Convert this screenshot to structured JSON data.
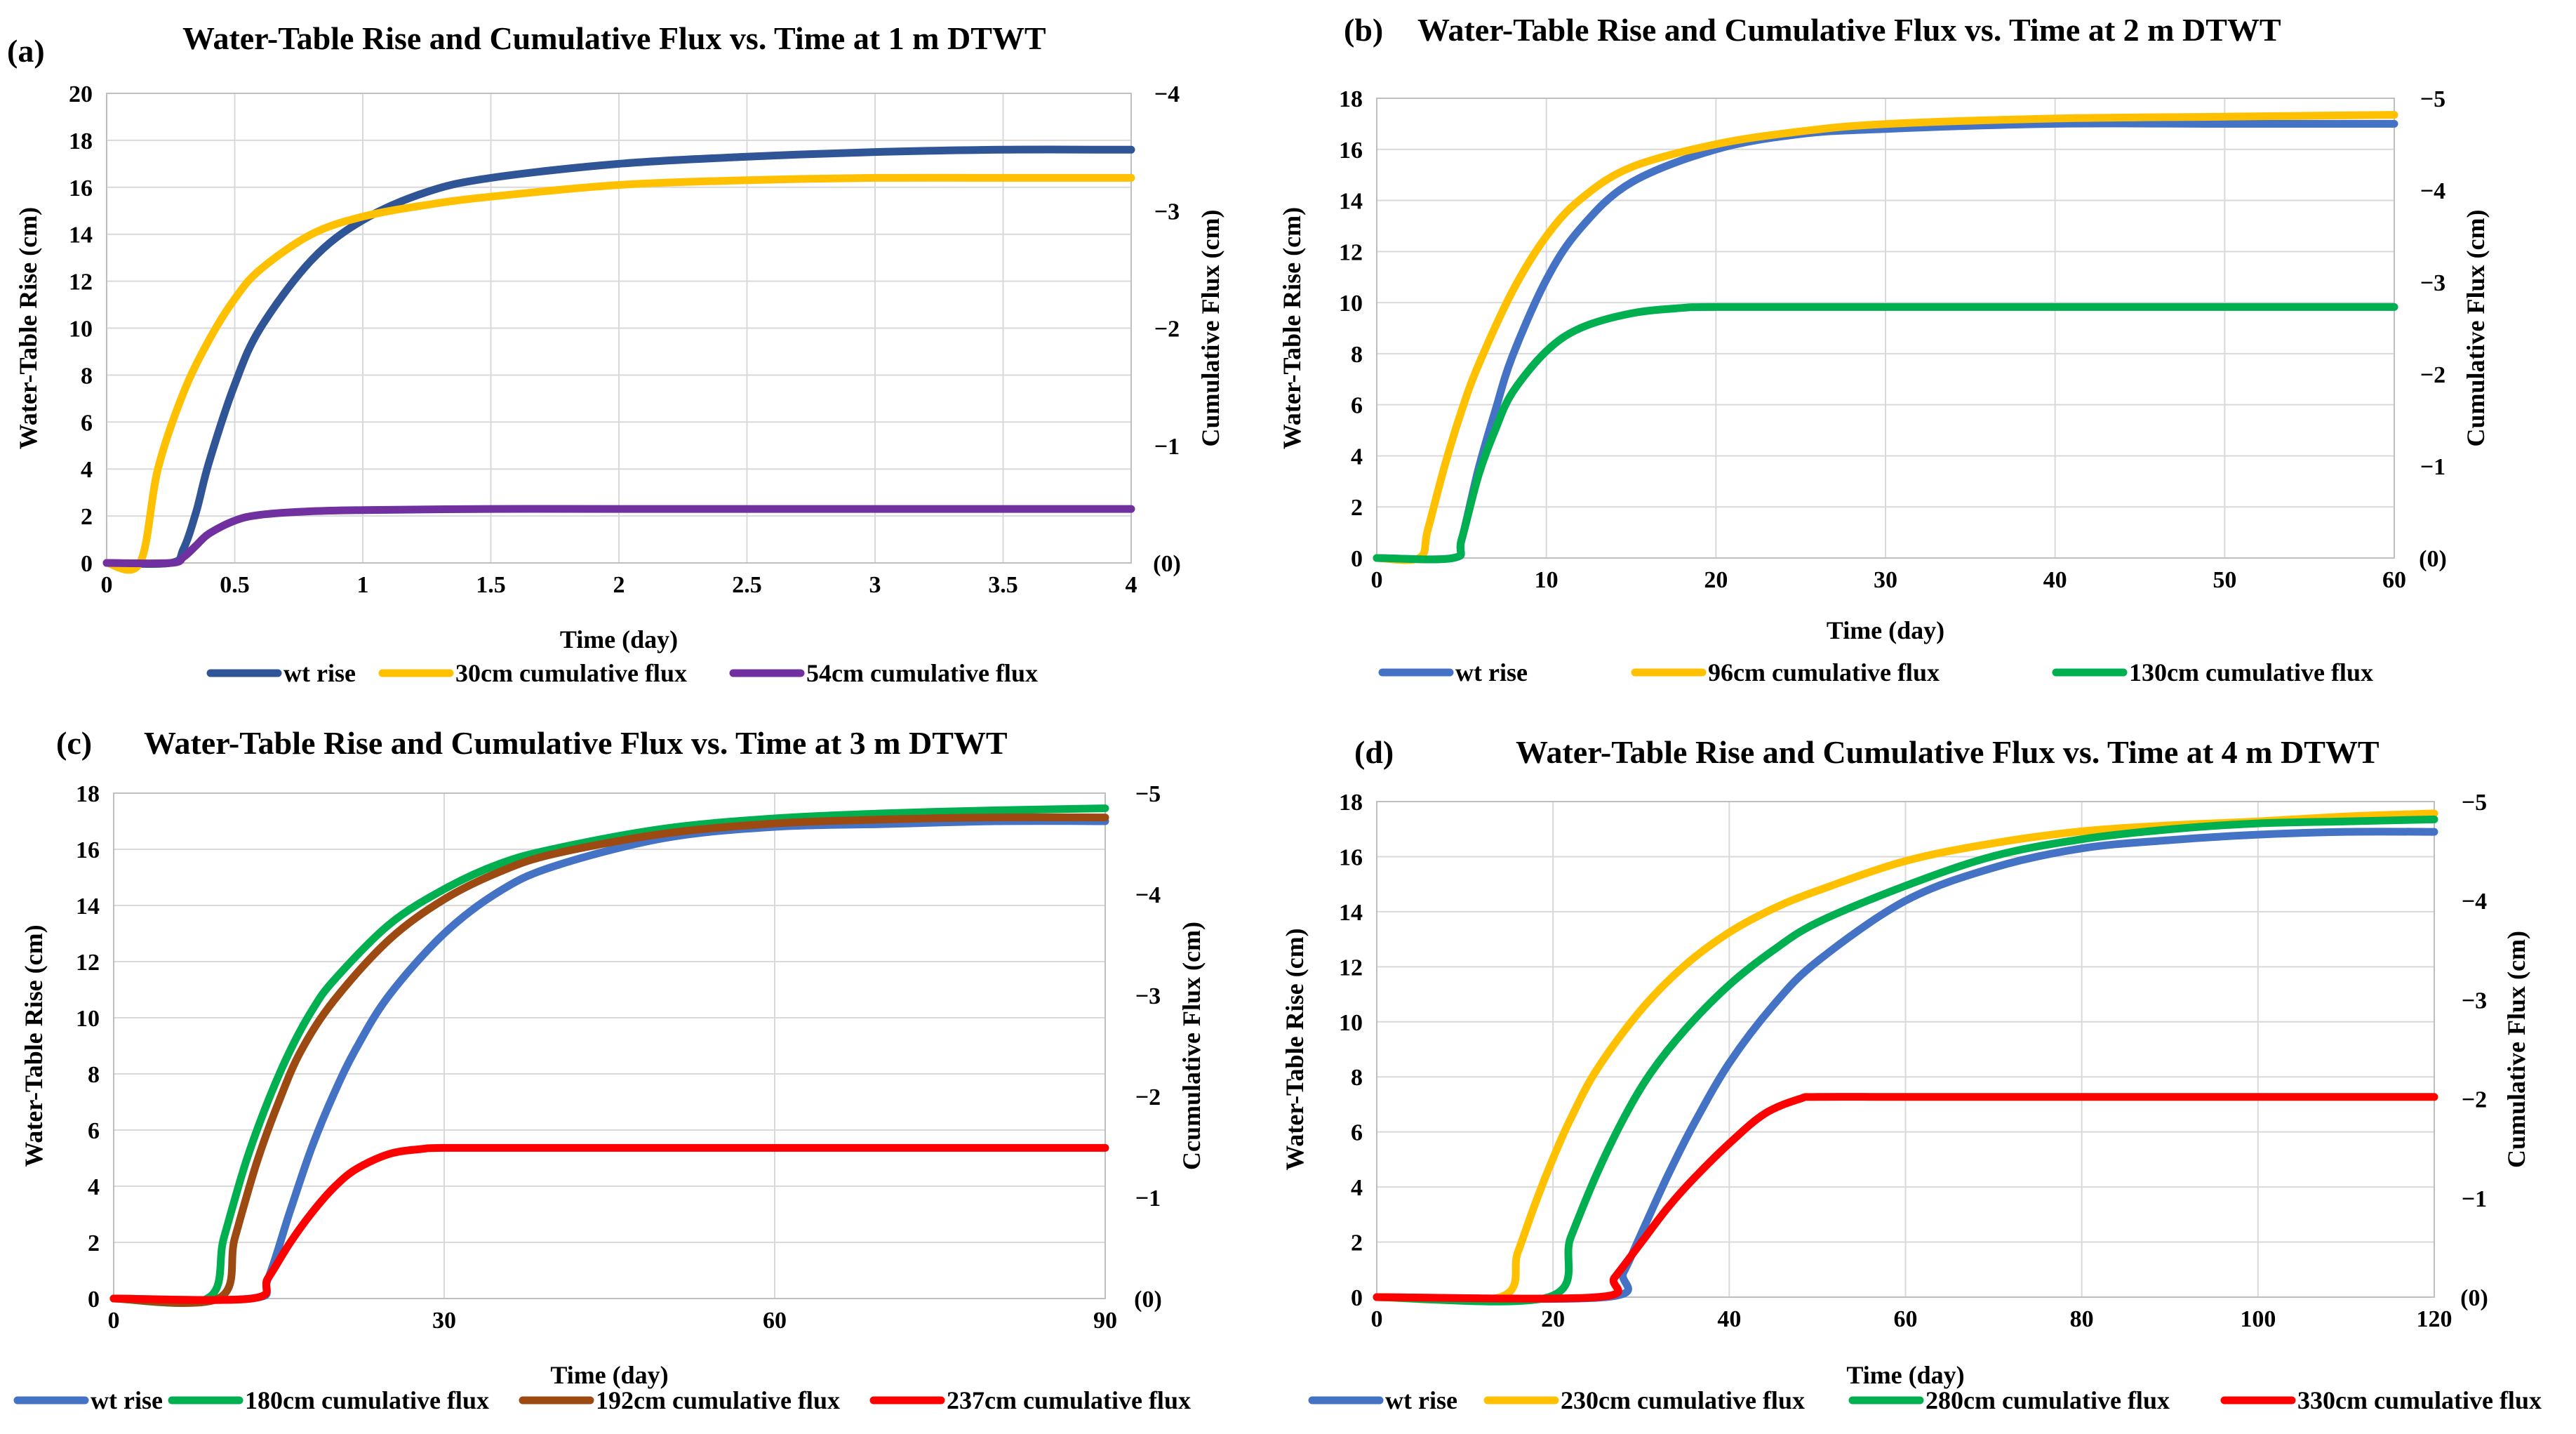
{
  "chart_data": [
    {
      "panel": "(a)",
      "type": "line",
      "title": "Water-Table Rise and Cumulative Flux vs. Time at 1 m DTWT",
      "xlabel": "Time (day)",
      "ylabel": "Water-Table Rise (cm)",
      "y2label": "Cumulative Flux (cm)",
      "xlim": [
        0,
        4
      ],
      "ylim": [
        0,
        20
      ],
      "y2lim": [
        0,
        -4
      ],
      "xticks": [
        "0",
        "0.5",
        "1",
        "1.5",
        "2",
        "2.5",
        "3",
        "3.5",
        "4"
      ],
      "yticks": [
        "0",
        "2",
        "4",
        "6",
        "8",
        "10",
        "12",
        "14",
        "16",
        "18",
        "20"
      ],
      "y2ticks": [
        "(0)",
        "−1",
        "−2",
        "−3",
        "−4"
      ],
      "series": [
        {
          "name": "wt rise",
          "color": "#2f5597",
          "axis": "left",
          "x": [
            0,
            0.25,
            0.3,
            0.35,
            0.4,
            0.5,
            0.6,
            0.8,
            1.0,
            1.25,
            1.5,
            2.0,
            2.5,
            3.0,
            3.5,
            4.0
          ],
          "y": [
            0,
            0,
            0.6,
            2.2,
            4.3,
            7.6,
            10.0,
            12.9,
            14.6,
            15.8,
            16.4,
            17.0,
            17.3,
            17.5,
            17.6,
            17.6
          ]
        },
        {
          "name": "30cm cumulative flux",
          "color": "#ffc000",
          "axis": "right",
          "x": [
            0,
            0.13,
            0.2,
            0.3,
            0.4,
            0.5,
            0.6,
            0.8,
            1.0,
            1.25,
            1.5,
            2.0,
            2.5,
            3.0,
            3.5,
            4.0
          ],
          "y": [
            0,
            0,
            -0.8,
            -1.45,
            -1.9,
            -2.25,
            -2.5,
            -2.8,
            -2.95,
            -3.05,
            -3.12,
            -3.22,
            -3.26,
            -3.28,
            -3.28,
            -3.28
          ]
        },
        {
          "name": "54cm cumulative flux",
          "color": "#7030a0",
          "axis": "right",
          "x": [
            0,
            0.25,
            0.3,
            0.35,
            0.4,
            0.5,
            0.6,
            0.8,
            1.0,
            1.5,
            2.0,
            3.0,
            4.0
          ],
          "y": [
            0,
            0,
            -0.05,
            -0.15,
            -0.25,
            -0.36,
            -0.41,
            -0.44,
            -0.45,
            -0.46,
            -0.46,
            -0.46,
            -0.46
          ]
        }
      ]
    },
    {
      "panel": "(b)",
      "type": "line",
      "title": "Water-Table Rise and Cumulative Flux vs. Time at 2 m DTWT",
      "xlabel": "Time (day)",
      "ylabel": "Water-Table Rise (cm)",
      "y2label": "Cumulative Flux (cm)",
      "xlim": [
        0,
        60
      ],
      "ylim": [
        0,
        18
      ],
      "y2lim": [
        0,
        -5
      ],
      "xticks": [
        "0",
        "10",
        "20",
        "30",
        "40",
        "50",
        "60"
      ],
      "yticks": [
        "0",
        "2",
        "4",
        "6",
        "8",
        "10",
        "12",
        "14",
        "16",
        "18"
      ],
      "y2ticks": [
        "(0)",
        "−1",
        "−2",
        "−3",
        "−4",
        "−5"
      ],
      "series": [
        {
          "name": "wt rise",
          "color": "#4472c4",
          "axis": "left",
          "x": [
            0,
            4.5,
            5,
            6,
            7,
            8,
            10,
            12,
            15,
            20,
            25,
            30,
            40,
            50,
            60
          ],
          "y": [
            0,
            0,
            0.7,
            3.5,
            5.8,
            7.9,
            10.9,
            12.9,
            14.7,
            16.0,
            16.6,
            16.8,
            17.0,
            17.0,
            17.0
          ]
        },
        {
          "name": "96cm cumulative flux",
          "color": "#ffc000",
          "axis": "right",
          "x": [
            0,
            2.5,
            3,
            4,
            5,
            6,
            8,
            10,
            12,
            15,
            20,
            25,
            30,
            40,
            50,
            60
          ],
          "y": [
            0,
            0,
            -0.3,
            -1.0,
            -1.6,
            -2.1,
            -2.9,
            -3.5,
            -3.9,
            -4.25,
            -4.5,
            -4.64,
            -4.72,
            -4.78,
            -4.8,
            -4.82
          ]
        },
        {
          "name": "130cm cumulative flux",
          "color": "#00b050",
          "axis": "right",
          "x": [
            0,
            4.5,
            5,
            6,
            7,
            8,
            10,
            12,
            15,
            18,
            20,
            30,
            40,
            50,
            60
          ],
          "y": [
            0,
            0,
            -0.2,
            -0.9,
            -1.4,
            -1.8,
            -2.25,
            -2.5,
            -2.66,
            -2.72,
            -2.73,
            -2.73,
            -2.73,
            -2.73,
            -2.73
          ]
        }
      ]
    },
    {
      "panel": "(c)",
      "type": "line",
      "title": "Water-Table Rise and Cumulative Flux vs. Time at 3 m DTWT",
      "xlabel": "Time (day)",
      "ylabel": "Water-Table Rise (cm)",
      "y2label": "Ccumulative Flux (cm)",
      "xlim": [
        0,
        90
      ],
      "ylim": [
        0,
        18
      ],
      "y2lim": [
        0,
        -5
      ],
      "xticks": [
        "0",
        "30",
        "60",
        "90"
      ],
      "yticks": [
        "0",
        "2",
        "4",
        "6",
        "8",
        "10",
        "12",
        "14",
        "16",
        "18"
      ],
      "y2ticks": [
        "(0)",
        "−1",
        "−2",
        "−3",
        "−4",
        "−5"
      ],
      "series": [
        {
          "name": "wt rise",
          "color": "#4472c4",
          "axis": "left",
          "x": [
            0,
            12.5,
            14,
            16,
            18,
            20,
            22,
            25,
            30,
            35,
            40,
            50,
            60,
            70,
            80,
            90
          ],
          "y": [
            0,
            0,
            0.7,
            3.1,
            5.4,
            7.3,
            8.9,
            10.8,
            13.0,
            14.5,
            15.4,
            16.4,
            16.8,
            16.9,
            17.0,
            17.0
          ]
        },
        {
          "name": "180cm cumulative flux",
          "color": "#00b050",
          "axis": "right",
          "x": [
            0,
            8.5,
            10,
            12,
            14,
            16,
            18,
            20,
            25,
            30,
            35,
            40,
            50,
            60,
            70,
            80,
            90
          ],
          "y": [
            0,
            0,
            -0.6,
            -1.35,
            -1.95,
            -2.45,
            -2.85,
            -3.15,
            -3.7,
            -4.05,
            -4.3,
            -4.45,
            -4.65,
            -4.75,
            -4.8,
            -4.83,
            -4.85
          ]
        },
        {
          "name": "192cm cumulative flux",
          "color": "#9c4a12",
          "axis": "right",
          "x": [
            0,
            9.5,
            11,
            13,
            15,
            17,
            20,
            25,
            30,
            35,
            40,
            50,
            60,
            70,
            80,
            90
          ],
          "y": [
            0,
            0,
            -0.6,
            -1.35,
            -1.95,
            -2.45,
            -2.95,
            -3.55,
            -3.95,
            -4.22,
            -4.4,
            -4.6,
            -4.7,
            -4.74,
            -4.76,
            -4.76
          ]
        },
        {
          "name": "237cm cumulative flux",
          "color": "#ff0000",
          "axis": "right",
          "x": [
            0,
            12.5,
            14,
            16,
            18,
            20,
            22,
            25,
            28,
            30,
            40,
            60,
            90
          ],
          "y": [
            0,
            0,
            -0.2,
            -0.55,
            -0.85,
            -1.1,
            -1.28,
            -1.43,
            -1.48,
            -1.49,
            -1.49,
            -1.49,
            -1.49
          ]
        }
      ]
    },
    {
      "panel": "(d)",
      "type": "line",
      "title": "Water-Table Rise and Cumulative Flux vs. Time at 4 m DTWT",
      "xlabel": "Time (day)",
      "ylabel": "Water-Table Rise (cm)",
      "y2label": "Cumulative  Flux (cm)",
      "xlim": [
        0,
        120
      ],
      "ylim": [
        0,
        18
      ],
      "y2lim": [
        0,
        -5
      ],
      "xticks": [
        "0",
        "20",
        "40",
        "60",
        "80",
        "100",
        "120"
      ],
      "yticks": [
        "0",
        "2",
        "4",
        "6",
        "8",
        "10",
        "12",
        "14",
        "16",
        "18"
      ],
      "y2ticks": [
        "(0)",
        "−1",
        "−2",
        "−3",
        "−4",
        "−5"
      ],
      "series": [
        {
          "name": "wt rise",
          "color": "#4472c4",
          "axis": "left",
          "x": [
            0,
            26,
            28,
            30,
            33,
            36,
            40,
            45,
            50,
            60,
            70,
            80,
            90,
            100,
            110,
            120
          ],
          "y": [
            0,
            0,
            0.9,
            2.3,
            4.4,
            6.3,
            8.5,
            10.6,
            12.2,
            14.4,
            15.6,
            16.3,
            16.6,
            16.8,
            16.9,
            16.9
          ]
        },
        {
          "name": "230cm cumulative flux",
          "color": "#ffc000",
          "axis": "right",
          "x": [
            0,
            14,
            16,
            18,
            20,
            22,
            25,
            30,
            35,
            40,
            45,
            50,
            60,
            70,
            80,
            90,
            100,
            110,
            120
          ],
          "y": [
            0,
            0,
            -0.45,
            -0.95,
            -1.4,
            -1.8,
            -2.3,
            -2.9,
            -3.35,
            -3.68,
            -3.92,
            -4.1,
            -4.4,
            -4.58,
            -4.7,
            -4.76,
            -4.8,
            -4.85,
            -4.88
          ]
        },
        {
          "name": "280cm cumulative flux",
          "color": "#00b050",
          "axis": "right",
          "x": [
            0,
            19.5,
            22,
            25,
            28,
            31,
            35,
            40,
            45,
            50,
            60,
            70,
            80,
            90,
            100,
            110,
            120
          ],
          "y": [
            0,
            0,
            -0.6,
            -1.25,
            -1.8,
            -2.25,
            -2.7,
            -3.15,
            -3.5,
            -3.78,
            -4.15,
            -4.45,
            -4.62,
            -4.72,
            -4.78,
            -4.8,
            -4.82
          ]
        },
        {
          "name": "330cm cumulative flux",
          "color": "#ff0000",
          "axis": "right",
          "x": [
            0,
            25,
            27,
            30,
            33,
            36,
            40,
            44,
            48,
            50,
            60,
            80,
            100,
            120
          ],
          "y": [
            0,
            0,
            -0.2,
            -0.55,
            -0.9,
            -1.2,
            -1.55,
            -1.85,
            -2.0,
            -2.02,
            -2.02,
            -2.02,
            -2.02,
            -2.02
          ]
        }
      ]
    }
  ]
}
